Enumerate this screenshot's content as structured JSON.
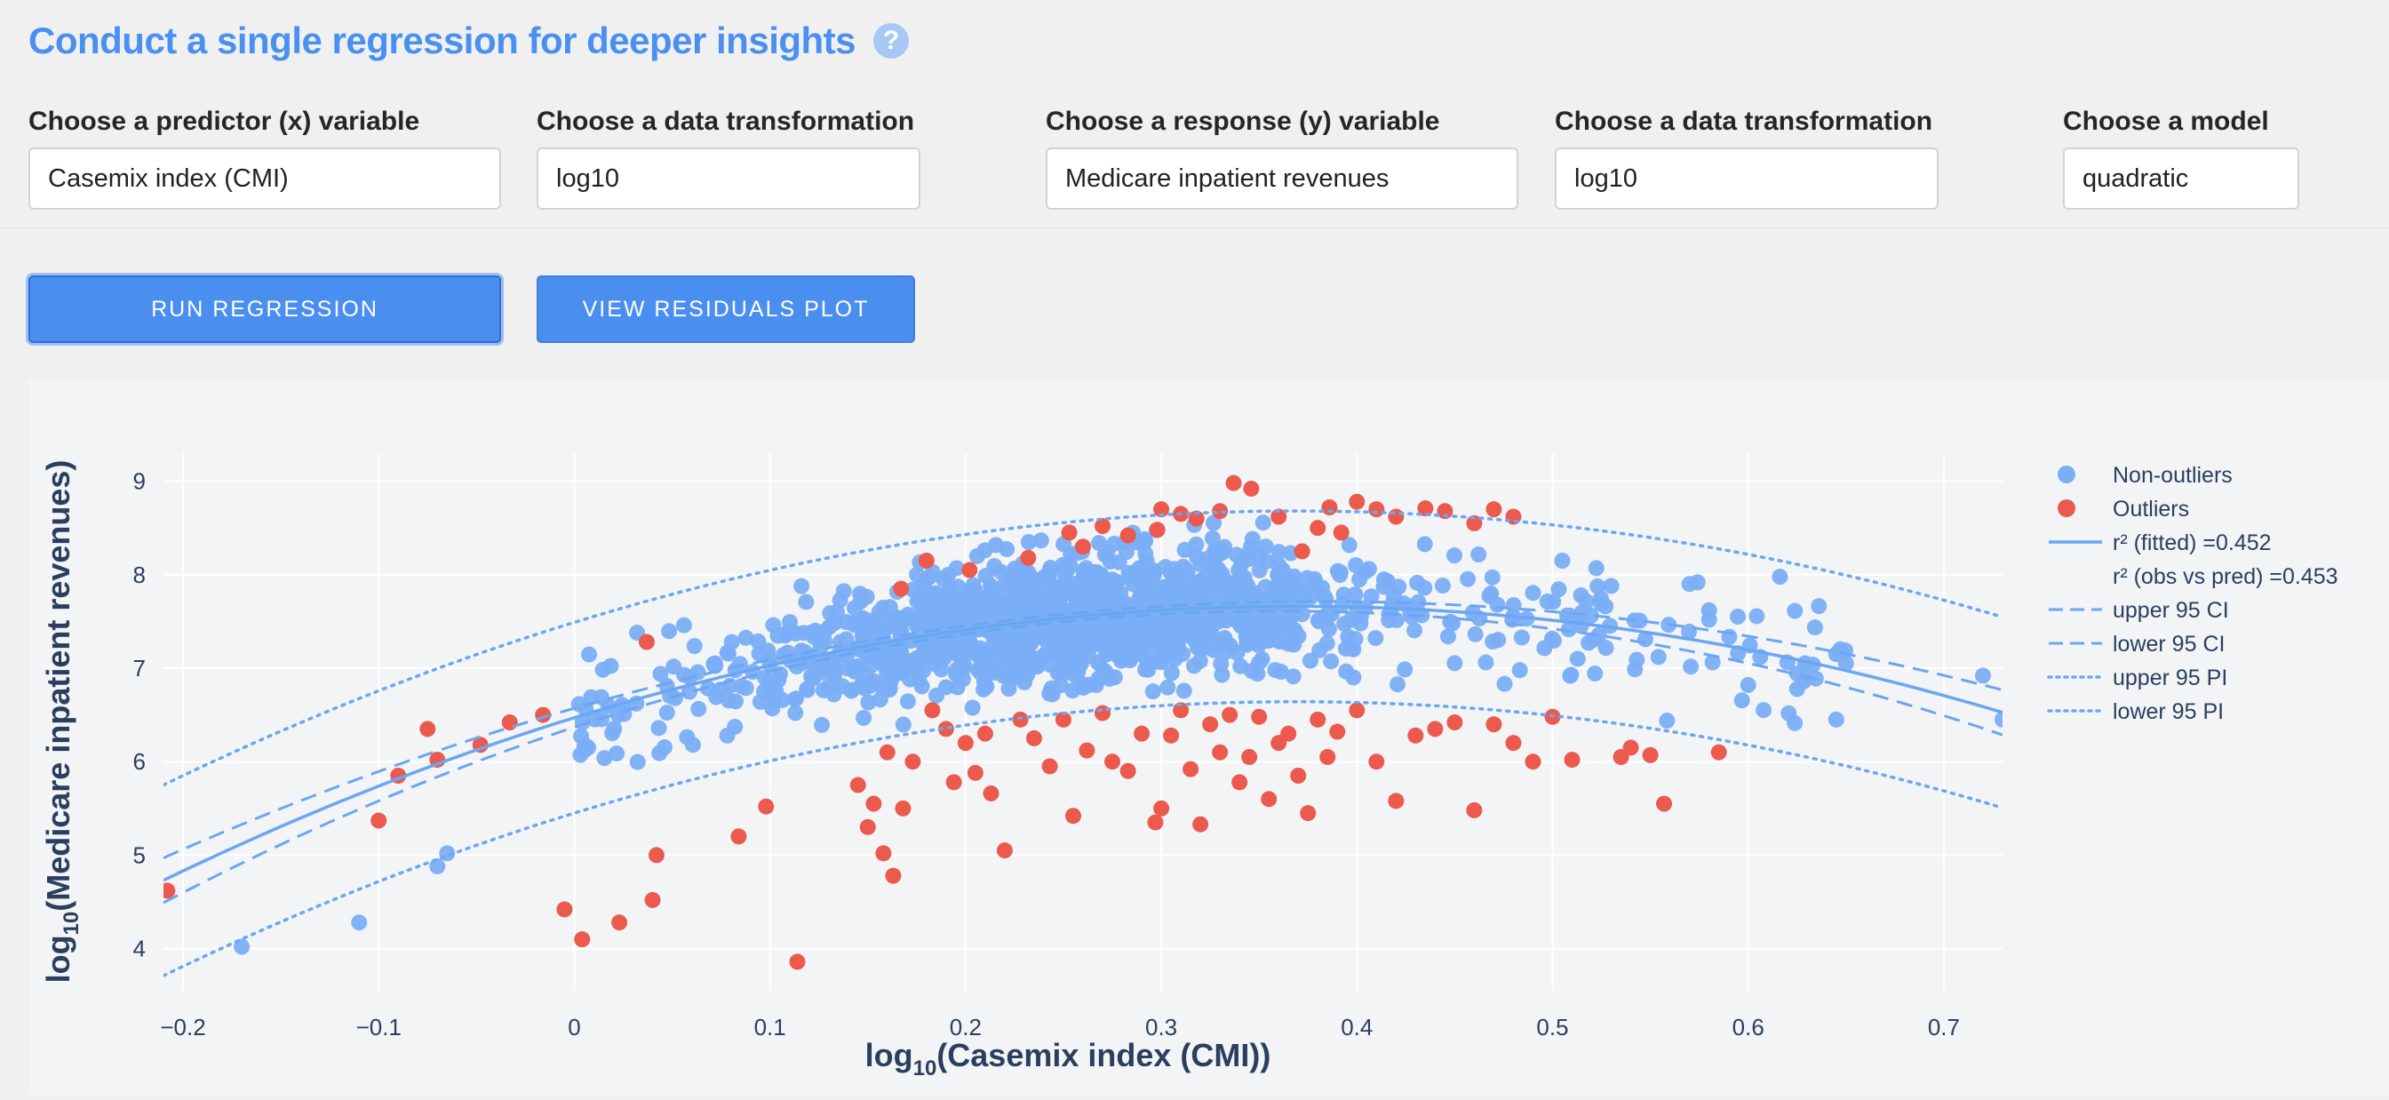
{
  "header": {
    "title": "Conduct a single regression for deeper insights",
    "help_icon": "?"
  },
  "controls": {
    "predictor_label": "Choose a predictor (x) variable",
    "predictor_value": "Casemix index (CMI)",
    "x_transform_label": "Choose a data transformation",
    "x_transform_value": "log10",
    "response_label": "Choose a response (y) variable",
    "response_value": "Medicare inpatient revenues",
    "y_transform_label": "Choose a data transformation",
    "y_transform_value": "log10",
    "model_label": "Choose a model",
    "model_value": "quadratic"
  },
  "buttons": {
    "run_label": "RUN REGRESSION",
    "residuals_label": "VIEW RESIDUALS PLOT"
  },
  "colors": {
    "non_outlier": "#7aaef5",
    "outlier": "#eb5a4d",
    "fit_line": "#6aa6f2",
    "accent": "#4a90f0"
  },
  "chart_data": {
    "type": "scatter",
    "xlabel_prefix": "log",
    "xlabel_sub": "10",
    "xlabel_suffix": "(Casemix index (CMI))",
    "ylabel_prefix": "log",
    "ylabel_sub": "10",
    "ylabel_suffix": "(Medicare inpatient revenues)",
    "xlim": [
      -0.21,
      0.73
    ],
    "ylim": [
      3.55,
      9.3
    ],
    "x_ticks": [
      -0.2,
      -0.1,
      0,
      0.1,
      0.2,
      0.3,
      0.4,
      0.5,
      0.6,
      0.7
    ],
    "x_tick_labels": [
      "−0.2",
      "−0.1",
      "0",
      "0.1",
      "0.2",
      "0.3",
      "0.4",
      "0.5",
      "0.6",
      "0.7"
    ],
    "y_ticks": [
      4,
      5,
      6,
      7,
      8,
      9
    ],
    "y_tick_labels": [
      "4",
      "5",
      "6",
      "7",
      "8",
      "9"
    ],
    "grid": true,
    "legend_position": "top-right",
    "legend": [
      {
        "label": "Non-outliers",
        "kind": "dot",
        "color": "#7aaef5"
      },
      {
        "label": "Outliers",
        "kind": "dot",
        "color": "#eb5a4d"
      },
      {
        "label": "r² (fitted) =0.452",
        "kind": "solid",
        "color": "#6aa6f2"
      },
      {
        "label": "r² (obs vs pred) =0.453",
        "kind": "none",
        "color": "#6aa6f2"
      },
      {
        "label": "upper 95 CI",
        "kind": "dash",
        "color": "#6aa6f2"
      },
      {
        "label": "lower 95 CI",
        "kind": "dash",
        "color": "#6aa6f2"
      },
      {
        "label": "upper 95 PI",
        "kind": "dot-line",
        "color": "#6aa6f2"
      },
      {
        "label": "lower 95 PI",
        "kind": "dot-line",
        "color": "#6aa6f2"
      }
    ],
    "fit_model": {
      "type": "quadratic",
      "a": -8.73,
      "b": 6.45,
      "c": 6.47
    },
    "ci_halfwidth_at_edges": 0.2,
    "pi_halfwidth": 1.02,
    "outliers": [
      [
        -0.208,
        4.62
      ],
      [
        -0.1,
        5.37
      ],
      [
        -0.09,
        5.85
      ],
      [
        -0.075,
        6.35
      ],
      [
        -0.07,
        6.02
      ],
      [
        -0.048,
        6.18
      ],
      [
        -0.033,
        6.42
      ],
      [
        -0.016,
        6.5
      ],
      [
        -0.005,
        4.42
      ],
      [
        0.004,
        4.1
      ],
      [
        0.023,
        4.28
      ],
      [
        0.037,
        7.28
      ],
      [
        0.04,
        4.52
      ],
      [
        0.042,
        5.0
      ],
      [
        0.084,
        5.2
      ],
      [
        0.098,
        5.52
      ],
      [
        0.114,
        3.86
      ],
      [
        0.145,
        5.75
      ],
      [
        0.15,
        5.3
      ],
      [
        0.153,
        5.55
      ],
      [
        0.158,
        5.02
      ],
      [
        0.16,
        6.1
      ],
      [
        0.163,
        4.78
      ],
      [
        0.168,
        5.5
      ],
      [
        0.173,
        6.0
      ],
      [
        0.183,
        6.55
      ],
      [
        0.19,
        6.35
      ],
      [
        0.194,
        5.78
      ],
      [
        0.2,
        6.2
      ],
      [
        0.205,
        5.88
      ],
      [
        0.21,
        6.3
      ],
      [
        0.213,
        5.66
      ],
      [
        0.22,
        5.05
      ],
      [
        0.228,
        6.45
      ],
      [
        0.235,
        6.25
      ],
      [
        0.243,
        5.95
      ],
      [
        0.25,
        6.45
      ],
      [
        0.255,
        5.42
      ],
      [
        0.262,
        6.12
      ],
      [
        0.27,
        6.52
      ],
      [
        0.275,
        6.0
      ],
      [
        0.283,
        5.9
      ],
      [
        0.29,
        6.3
      ],
      [
        0.297,
        5.35
      ],
      [
        0.3,
        5.5
      ],
      [
        0.305,
        6.28
      ],
      [
        0.31,
        6.55
      ],
      [
        0.315,
        5.92
      ],
      [
        0.32,
        5.33
      ],
      [
        0.325,
        6.4
      ],
      [
        0.33,
        6.1
      ],
      [
        0.335,
        6.5
      ],
      [
        0.34,
        5.78
      ],
      [
        0.345,
        6.05
      ],
      [
        0.35,
        6.48
      ],
      [
        0.355,
        5.6
      ],
      [
        0.36,
        6.2
      ],
      [
        0.365,
        6.3
      ],
      [
        0.37,
        5.85
      ],
      [
        0.375,
        5.45
      ],
      [
        0.38,
        6.45
      ],
      [
        0.385,
        6.05
      ],
      [
        0.39,
        6.32
      ],
      [
        0.4,
        6.55
      ],
      [
        0.41,
        6.0
      ],
      [
        0.42,
        5.58
      ],
      [
        0.43,
        6.28
      ],
      [
        0.44,
        6.35
      ],
      [
        0.45,
        6.42
      ],
      [
        0.46,
        5.48
      ],
      [
        0.47,
        6.4
      ],
      [
        0.48,
        6.2
      ],
      [
        0.49,
        6.0
      ],
      [
        0.5,
        6.48
      ],
      [
        0.51,
        6.02
      ],
      [
        0.535,
        6.05
      ],
      [
        0.54,
        6.15
      ],
      [
        0.55,
        6.07
      ],
      [
        0.557,
        5.55
      ],
      [
        0.585,
        6.1
      ],
      [
        0.167,
        7.85
      ],
      [
        0.18,
        8.15
      ],
      [
        0.202,
        8.05
      ],
      [
        0.232,
        8.18
      ],
      [
        0.253,
        8.45
      ],
      [
        0.26,
        8.3
      ],
      [
        0.27,
        8.52
      ],
      [
        0.283,
        8.42
      ],
      [
        0.298,
        8.48
      ],
      [
        0.3,
        8.7
      ],
      [
        0.31,
        8.65
      ],
      [
        0.318,
        8.6
      ],
      [
        0.33,
        8.68
      ],
      [
        0.337,
        8.98
      ],
      [
        0.346,
        8.92
      ],
      [
        0.36,
        8.62
      ],
      [
        0.38,
        8.5
      ],
      [
        0.386,
        8.72
      ],
      [
        0.392,
        8.45
      ],
      [
        0.4,
        8.78
      ],
      [
        0.41,
        8.7
      ],
      [
        0.42,
        8.62
      ],
      [
        0.435,
        8.71
      ],
      [
        0.445,
        8.68
      ],
      [
        0.46,
        8.55
      ],
      [
        0.48,
        8.62
      ],
      [
        0.47,
        8.7
      ],
      [
        0.372,
        8.25
      ]
    ],
    "non_outliers_seed": 7,
    "non_outliers_count": 1450
  }
}
